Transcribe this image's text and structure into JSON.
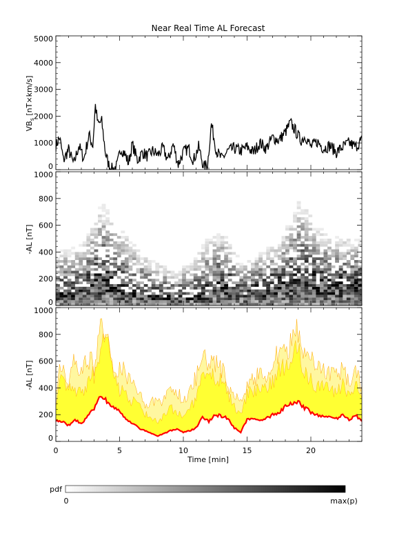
{
  "title": "Near Real Time AL Forecast",
  "x_axis": {
    "label": "Time [min]",
    "ticks": [
      "0",
      "5",
      "10",
      "15",
      "20"
    ],
    "range": [
      0,
      24
    ]
  },
  "colorbar": {
    "label": "pdf",
    "min_label": "0",
    "max_label": "max(p)"
  },
  "colors": {
    "line": "#000000",
    "median": "#ff0000",
    "band_inner": "#ffff33",
    "band_outer": "#fff7a0",
    "band_edge": "#ffa500"
  },
  "chart_data": [
    {
      "type": "line",
      "panel": "top",
      "ylabel": "VB_s [nT×km/s]",
      "ylabel_main": "VB",
      "ylabel_sub": "s",
      "ylabel_rest": " [nT×km/s]",
      "ylim": [
        0,
        5000
      ],
      "yticks": [
        "0",
        "1000",
        "2000",
        "3000",
        "4000",
        "5000"
      ],
      "x_key": [
        0,
        0.3,
        0.6,
        1.0,
        1.4,
        1.8,
        2.2,
        2.6,
        2.9,
        3.1,
        3.3,
        3.6,
        3.9,
        4.2,
        4.5,
        4.8,
        5.1,
        5.4,
        5.7,
        6.0,
        6.4,
        6.8,
        7.2,
        7.6,
        8.0,
        8.4,
        8.8,
        9.2,
        9.6,
        10.0,
        10.4,
        10.8,
        11.2,
        11.6,
        11.9,
        12.2,
        12.6,
        13.0,
        13.5,
        14.0,
        14.5,
        15.0,
        15.5,
        16.0,
        16.5,
        17.0,
        17.5,
        18.0,
        18.4,
        18.8,
        19.2,
        19.6,
        20.0,
        20.5,
        21.0,
        21.5,
        22.0,
        22.5,
        23.0,
        23.5,
        24.0
      ],
      "y_key": [
        900,
        1200,
        350,
        750,
        200,
        900,
        400,
        1300,
        900,
        2400,
        1700,
        1800,
        600,
        100,
        0,
        150,
        800,
        600,
        250,
        950,
        350,
        650,
        500,
        700,
        550,
        800,
        350,
        950,
        200,
        650,
        800,
        350,
        850,
        100,
        200,
        1700,
        700,
        400,
        700,
        800,
        700,
        850,
        650,
        1000,
        800,
        1200,
        1100,
        1400,
        1750,
        1450,
        1100,
        1250,
        850,
        1050,
        800,
        900,
        650,
        850,
        1000,
        850,
        1100
      ],
      "wiggle": 230
    },
    {
      "type": "heatmap",
      "panel": "middle",
      "ylabel": "-AL [nT]",
      "ylim": [
        0,
        1000
      ],
      "yticks": [
        "0",
        "200",
        "400",
        "600",
        "800",
        "1000"
      ],
      "description_centers_x": [
        0,
        2,
        3.5,
        5,
        7,
        9,
        10.5,
        12,
        13,
        14.5,
        16,
        17.5,
        19,
        20.5,
        22,
        24
      ],
      "description_centers_y": [
        80,
        110,
        220,
        90,
        60,
        40,
        50,
        80,
        160,
        70,
        110,
        160,
        190,
        150,
        140,
        170
      ],
      "description_extent_y": [
        420,
        480,
        800,
        600,
        380,
        280,
        330,
        560,
        560,
        330,
        420,
        500,
        850,
        600,
        520,
        540
      ]
    },
    {
      "type": "area",
      "panel": "bottom",
      "ylabel": "-AL [nT]",
      "ylim": [
        0,
        1000
      ],
      "yticks": [
        "0",
        "200",
        "400",
        "600",
        "800",
        "1000"
      ],
      "x_key": [
        0,
        0.5,
        1.0,
        1.5,
        2.0,
        2.5,
        3.0,
        3.5,
        4.0,
        4.5,
        5.0,
        5.5,
        6.0,
        6.5,
        7.0,
        7.5,
        8.0,
        8.5,
        9.0,
        9.5,
        10.0,
        10.5,
        11.0,
        11.5,
        12.0,
        12.5,
        13.0,
        13.5,
        14.0,
        14.5,
        15.0,
        15.5,
        16.0,
        16.5,
        17.0,
        17.5,
        18.0,
        18.5,
        19.0,
        19.5,
        20.0,
        20.5,
        21.0,
        21.5,
        22.0,
        22.5,
        23.0,
        23.5,
        24.0
      ],
      "median": [
        160,
        150,
        120,
        160,
        130,
        190,
        240,
        350,
        300,
        250,
        220,
        160,
        140,
        100,
        80,
        60,
        40,
        60,
        80,
        90,
        70,
        80,
        100,
        180,
        150,
        200,
        190,
        170,
        100,
        70,
        160,
        170,
        150,
        170,
        200,
        210,
        260,
        280,
        300,
        250,
        220,
        200,
        190,
        180,
        170,
        200,
        160,
        200,
        150
      ],
      "inner_upper": [
        300,
        500,
        380,
        400,
        350,
        450,
        500,
        700,
        820,
        500,
        380,
        350,
        300,
        260,
        200,
        180,
        150,
        200,
        250,
        220,
        200,
        250,
        300,
        500,
        520,
        450,
        480,
        350,
        250,
        200,
        350,
        380,
        380,
        420,
        450,
        550,
        560,
        600,
        700,
        500,
        450,
        420,
        400,
        380,
        350,
        420,
        350,
        450,
        300
      ],
      "outer_upper": [
        400,
        580,
        450,
        600,
        500,
        640,
        560,
        850,
        620,
        500,
        530,
        520,
        420,
        350,
        280,
        300,
        280,
        330,
        360,
        380,
        300,
        380,
        480,
        600,
        620,
        600,
        550,
        400,
        320,
        300,
        420,
        450,
        520,
        500,
        600,
        650,
        700,
        720,
        850,
        650,
        600,
        560,
        520,
        500,
        480,
        550,
        420,
        560,
        380
      ]
    }
  ]
}
